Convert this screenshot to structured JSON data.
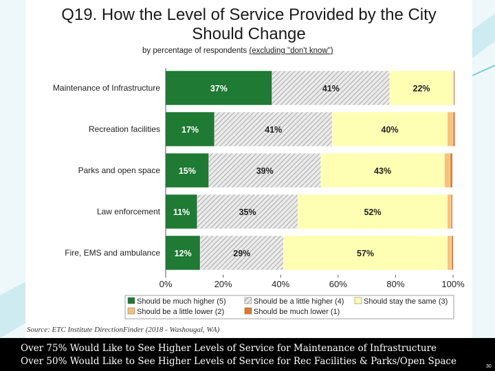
{
  "chart_data": {
    "type": "bar",
    "orientation": "horizontal",
    "stacked": true,
    "title": "Q19. How the Level of Service Provided by the City Should Change",
    "title_lines": [
      "Q19. How the Level of Service Provided by the City",
      "Should Change"
    ],
    "subtitle_prefix": "by percentage of respondents",
    "subtitle_suffix": "(excluding \"don't know\")",
    "categories": [
      "Maintenance of Infrastructure",
      "Recreation facilities",
      "Parks and open space",
      "Law enforcement",
      "Fire, EMS and ambulance"
    ],
    "series": [
      {
        "name": "Should be much higher (5)",
        "values": [
          37,
          17,
          15,
          11,
          12
        ],
        "labels": [
          "37%",
          "17%",
          "15%",
          "11%",
          "12%"
        ],
        "color": "#1f7a33",
        "label_color": "#ffffff",
        "pattern": false
      },
      {
        "name": "Should be a little higher (4)",
        "values": [
          41,
          41,
          39,
          35,
          29
        ],
        "labels": [
          "41%",
          "41%",
          "39%",
          "35%",
          "29%"
        ],
        "color": "#d4d4d4",
        "label_color": "#222222",
        "pattern": true
      },
      {
        "name": "Should stay the same (3)",
        "values": [
          22,
          40,
          43,
          52,
          57
        ],
        "labels": [
          "22%",
          "40%",
          "43%",
          "52%",
          "57%"
        ],
        "color": "#ffffb3",
        "label_color": "#222222",
        "pattern": false
      },
      {
        "name": "Should be a little lower (2)",
        "values": [
          0.2,
          2.0,
          2.0,
          1.3,
          1.5
        ],
        "color": "#f5c47a",
        "pattern": false
      },
      {
        "name": "Should be much lower (1)",
        "values": [
          0.4,
          0.7,
          0.8,
          0.5,
          0.6
        ],
        "color": "#e0782a",
        "pattern": false
      }
    ],
    "xlim": [
      0,
      100
    ],
    "xticks": [
      0,
      20,
      40,
      60,
      80,
      100
    ],
    "xtick_labels": [
      "0%",
      "20%",
      "40%",
      "60%",
      "80%",
      "100%"
    ],
    "legend_position": "bottom",
    "source": "Source:  ETC Institute DirectionFinder (2018 - Washougal, WA)"
  },
  "caption": {
    "line1": "Over 75% Would Like to See Higher Levels of Service for Maintenance of Infrastructure",
    "line2": "Over 50% Would Like to See Higher Levels of Service for Rec Facilities & Parks/Open Space"
  },
  "page_number": "30",
  "colors": {
    "accent_teal": "#8fd3e0",
    "caption_bg": "#000000"
  }
}
